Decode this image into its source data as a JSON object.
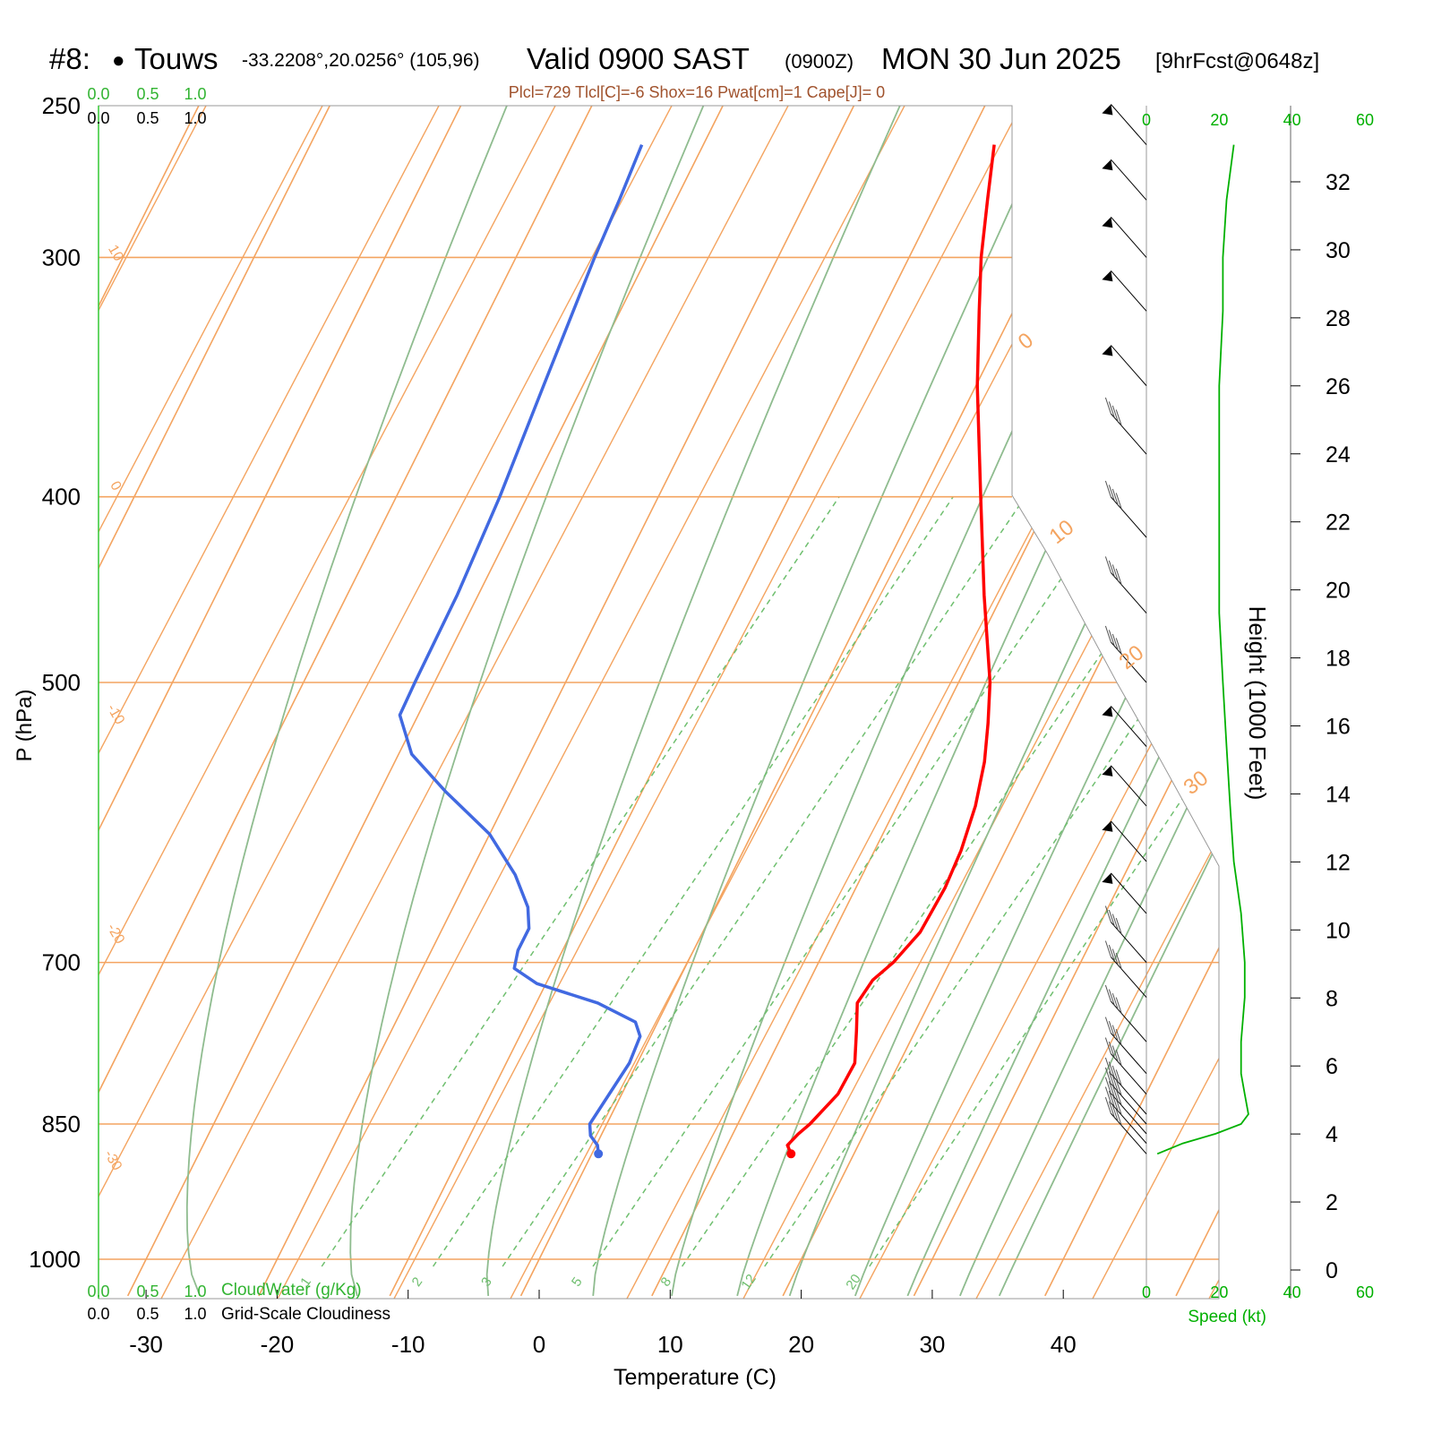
{
  "header": {
    "station_num": "#8:",
    "station_dot": "●",
    "station_name": "Touws",
    "coords": "-33.2208°,20.0256° (105,96)",
    "valid": "Valid 0900 SAST",
    "zulu": "(0900Z)",
    "date": "MON 30 Jun 2025",
    "fcst": "[9hrFcst@0648z]"
  },
  "indices": "Plcl=729 Tlcl[C]=-6 Shox=16 Pwat[cm]=1 Cape[J]= 0",
  "cloud_scale_top": {
    "green": [
      "0.0",
      "0.5",
      "1.0"
    ],
    "black": [
      "0.0",
      "0.5",
      "1.0"
    ]
  },
  "cloud_scale_bottom": {
    "green": [
      "0.0",
      "0.5",
      "1.0"
    ],
    "green_label": "CloudWater (g/Kg)",
    "black": [
      "0.0",
      "0.5",
      "1.0"
    ],
    "black_label": "Grid-Scale Cloudiness"
  },
  "speed_axis": {
    "ticks": [
      "0",
      "20",
      "40",
      "60"
    ],
    "label": "Speed (kt)"
  },
  "colors": {
    "temp": "#ff0000",
    "dewpoint": "#4169e1",
    "isotherm": "#f4a460",
    "dry_adiabat": "#f4a460",
    "moist_adiabat": "#8fbc8f",
    "mixing_ratio": "#6fbf6f",
    "speed": "#00b000"
  },
  "chart_data": {
    "type": "line",
    "subtype": "skew-T log-P sounding",
    "xlabel": "Temperature (C)",
    "ylabel": "P (hPa)",
    "y2label": "Height (1000 Feet)",
    "x_ticks": [
      -30,
      -20,
      -10,
      0,
      10,
      20,
      30,
      40
    ],
    "p_ticks": [
      250,
      300,
      400,
      500,
      700,
      850,
      1000
    ],
    "p_range": [
      250,
      1045
    ],
    "height_ticks": [
      0,
      2,
      4,
      6,
      8,
      10,
      12,
      14,
      16,
      18,
      20,
      22,
      24,
      26,
      28,
      30,
      32
    ],
    "isotherm_labels": [
      "10",
      "0",
      "-10",
      "-20",
      "-30",
      "0",
      "10",
      "20",
      "30"
    ],
    "mixing_ratio_labels": [
      "1",
      "2",
      "3",
      "5",
      "8",
      "12",
      "20"
    ],
    "temperature": [
      [
        881,
        15.2
      ],
      [
        872,
        14.6
      ],
      [
        860,
        15.0
      ],
      [
        850,
        15.5
      ],
      [
        820,
        16.5
      ],
      [
        790,
        16.6
      ],
      [
        760,
        15.5
      ],
      [
        735,
        14.5
      ],
      [
        715,
        14.8
      ],
      [
        700,
        15.7
      ],
      [
        675,
        16.6
      ],
      [
        640,
        16.8
      ],
      [
        612,
        16.6
      ],
      [
        580,
        16.0
      ],
      [
        550,
        15.0
      ],
      [
        525,
        13.8
      ],
      [
        500,
        12.4
      ],
      [
        450,
        8.6
      ],
      [
        400,
        4.6
      ],
      [
        350,
        0.1
      ],
      [
        320,
        -2.6
      ],
      [
        300,
        -4.5
      ],
      [
        280,
        -6.2
      ],
      [
        262,
        -7.8
      ]
    ],
    "dewpoint": [
      [
        881,
        0.5
      ],
      [
        872,
        0.1
      ],
      [
        862,
        -0.8
      ],
      [
        850,
        -1.3
      ],
      [
        790,
        -0.6
      ],
      [
        765,
        -0.8
      ],
      [
        752,
        -1.7
      ],
      [
        735,
        -5.3
      ],
      [
        718,
        -10.7
      ],
      [
        705,
        -13.0
      ],
      [
        690,
        -13.4
      ],
      [
        672,
        -13.4
      ],
      [
        655,
        -14.3
      ],
      [
        630,
        -16.5
      ],
      [
        600,
        -20.0
      ],
      [
        570,
        -25.0
      ],
      [
        545,
        -29.0
      ],
      [
        520,
        -31.4
      ],
      [
        500,
        -31.5
      ],
      [
        450,
        -31.6
      ],
      [
        400,
        -32.1
      ],
      [
        350,
        -33.0
      ],
      [
        300,
        -34.0
      ],
      [
        280,
        -34.3
      ],
      [
        262,
        -34.7
      ]
    ],
    "wind_speed": [
      [
        881,
        3
      ],
      [
        870,
        10
      ],
      [
        860,
        19
      ],
      [
        850,
        26
      ],
      [
        840,
        28
      ],
      [
        820,
        27
      ],
      [
        800,
        26
      ],
      [
        770,
        26
      ],
      [
        730,
        27
      ],
      [
        700,
        27
      ],
      [
        660,
        26
      ],
      [
        620,
        24
      ],
      [
        580,
        23
      ],
      [
        540,
        22
      ],
      [
        500,
        21
      ],
      [
        460,
        20
      ],
      [
        420,
        20
      ],
      [
        380,
        20
      ],
      [
        350,
        20
      ],
      [
        320,
        21
      ],
      [
        300,
        21
      ],
      [
        280,
        22
      ],
      [
        262,
        24
      ]
    ]
  }
}
